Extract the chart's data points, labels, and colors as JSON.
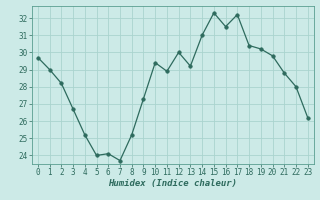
{
  "x": [
    0,
    1,
    2,
    3,
    4,
    5,
    6,
    7,
    8,
    9,
    10,
    11,
    12,
    13,
    14,
    15,
    16,
    17,
    18,
    19,
    20,
    21,
    22,
    23
  ],
  "y": [
    29.7,
    29.0,
    28.2,
    26.7,
    25.2,
    24.0,
    24.1,
    23.7,
    25.2,
    27.3,
    29.4,
    28.9,
    30.0,
    29.2,
    31.0,
    32.3,
    31.5,
    32.2,
    30.4,
    30.2,
    29.8,
    28.8,
    28.0,
    26.2
  ],
  "line_color": "#2e6b5e",
  "marker": "o",
  "marker_size": 2.5,
  "bg_color": "#cceae7",
  "grid_color": "#aad4ce",
  "xlabel": "Humidex (Indice chaleur)",
  "ylim": [
    23.5,
    32.7
  ],
  "xlim": [
    -0.5,
    23.5
  ],
  "yticks": [
    24,
    25,
    26,
    27,
    28,
    29,
    30,
    31,
    32
  ],
  "xticks": [
    0,
    1,
    2,
    3,
    4,
    5,
    6,
    7,
    8,
    9,
    10,
    11,
    12,
    13,
    14,
    15,
    16,
    17,
    18,
    19,
    20,
    21,
    22,
    23
  ],
  "tick_fontsize": 5.5,
  "xlabel_fontsize": 6.5
}
